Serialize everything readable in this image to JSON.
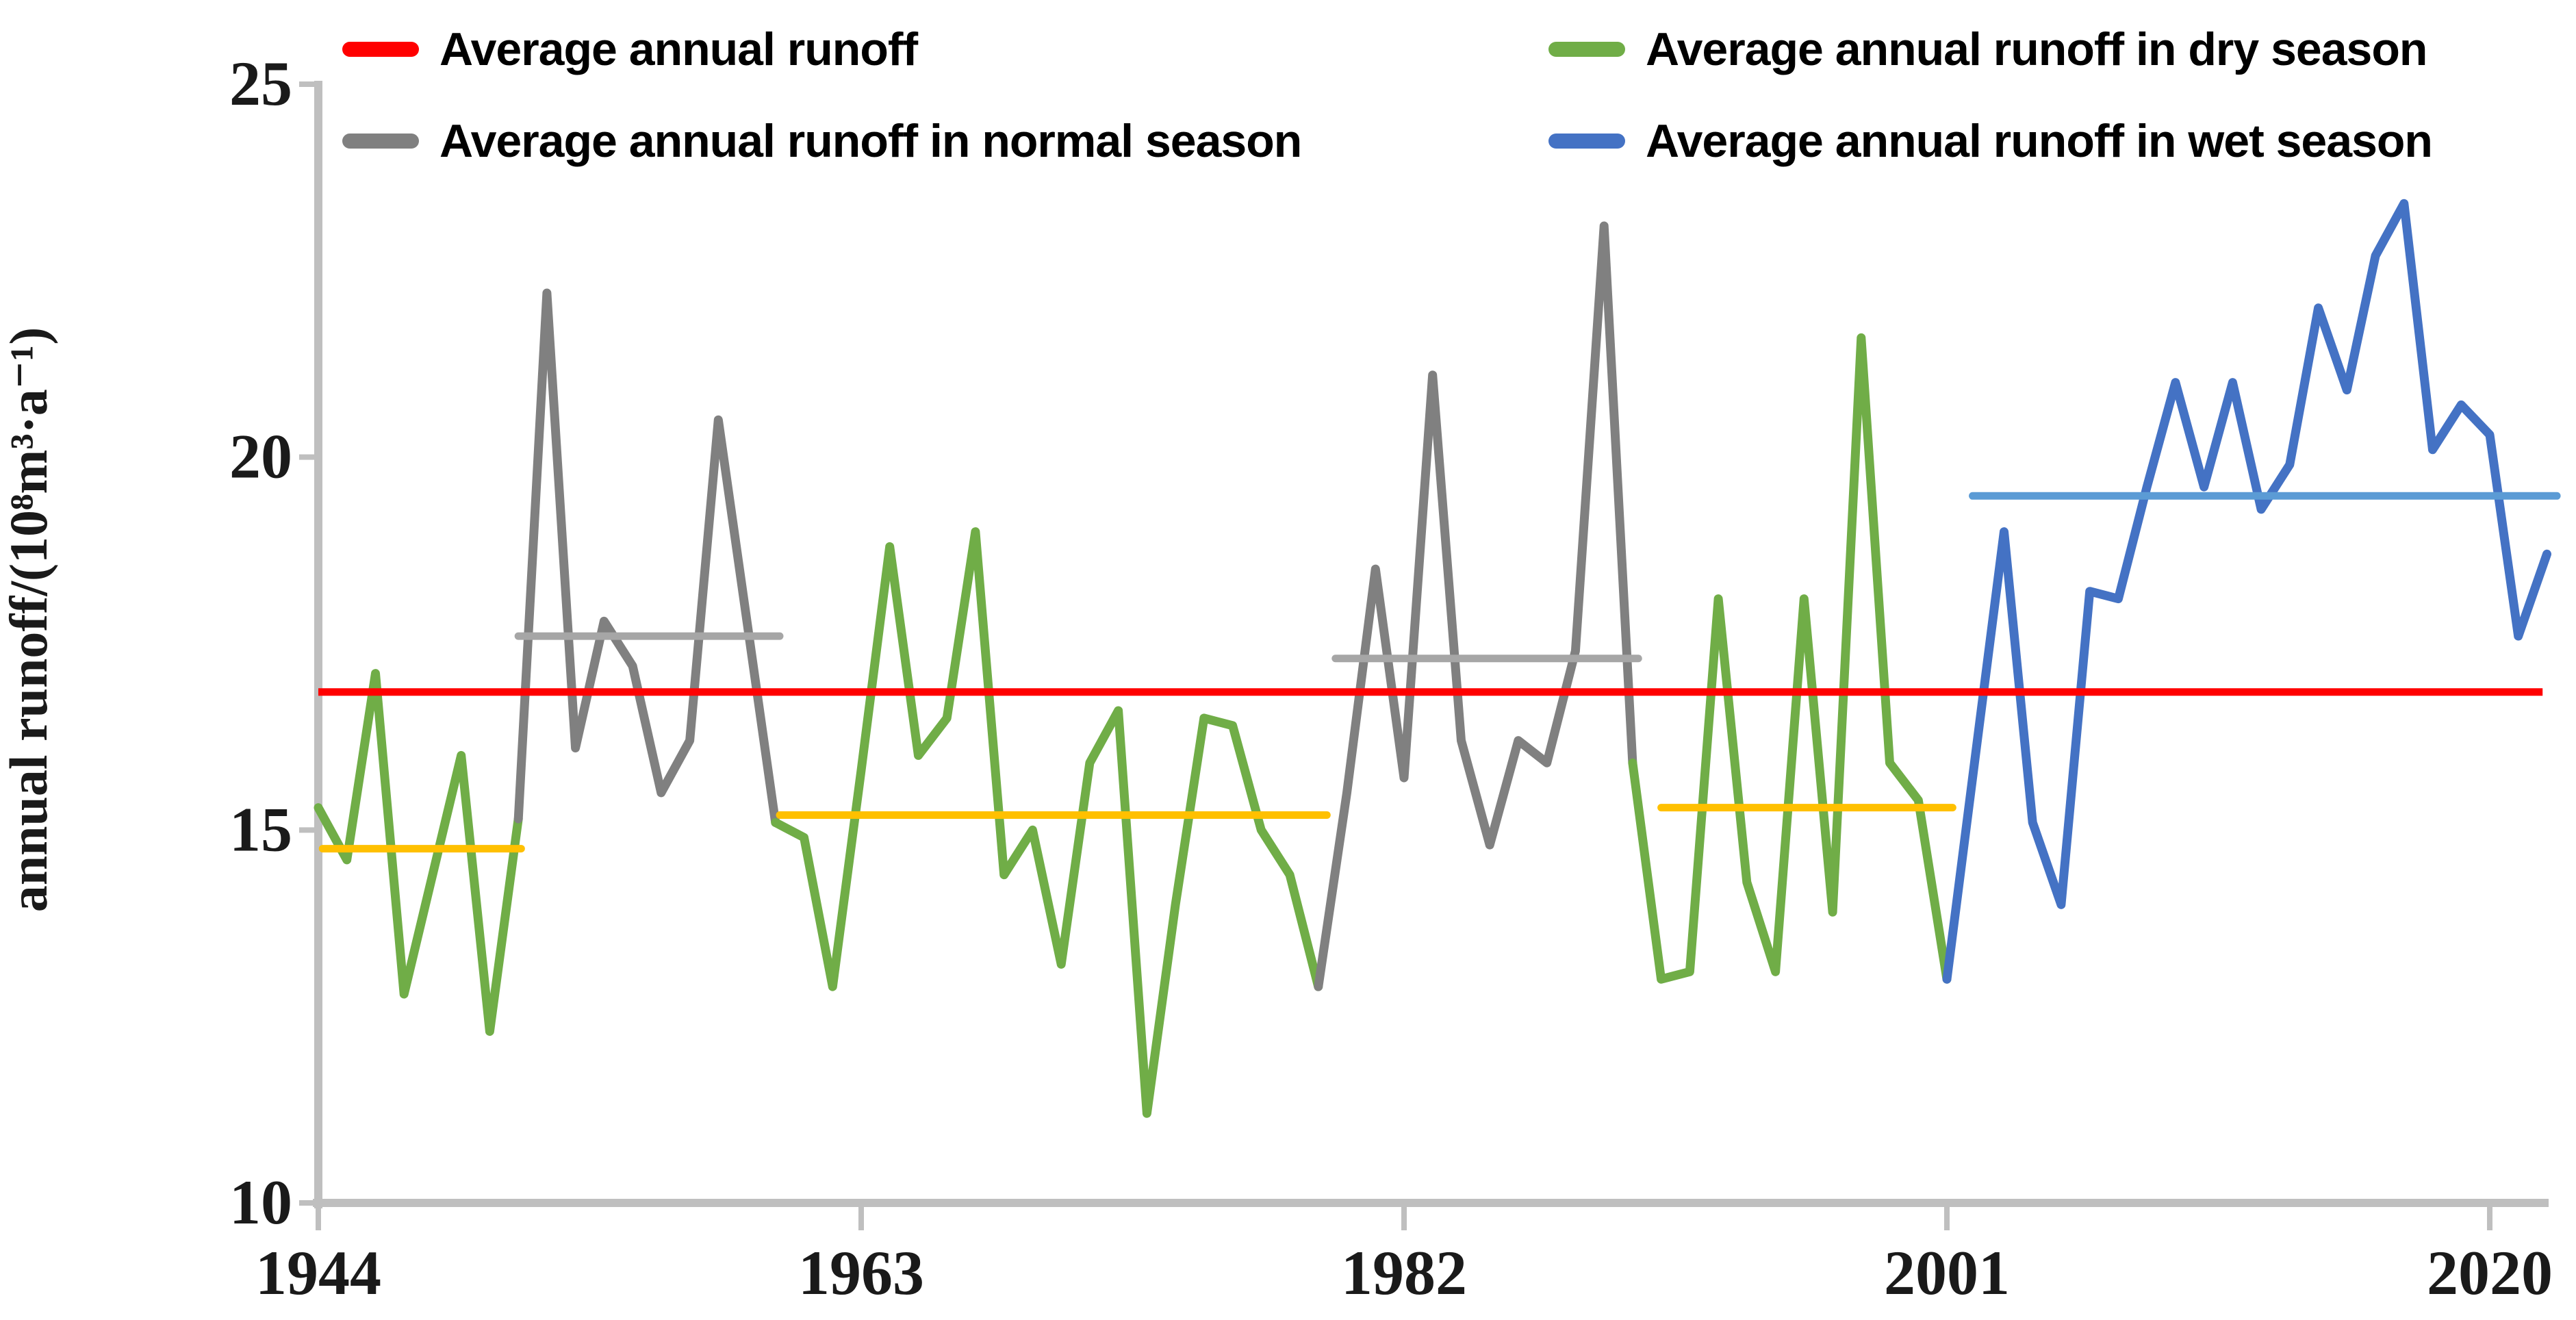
{
  "legend": [
    {
      "label": "Average annual runoff",
      "color": "#FF0000"
    },
    {
      "label": "Average annual runoff in normal season",
      "color": "#808080"
    },
    {
      "label": "Average annual runoff in dry season",
      "color": "#70AD47"
    },
    {
      "label": "Average annual runoff in wet season",
      "color": "#4472C4"
    }
  ],
  "y_axis": {
    "title": "annual runoff/(10⁸m³·a⁻¹)",
    "tick_labels": [
      "10",
      "15",
      "20",
      "25"
    ]
  },
  "x_axis": {
    "tick_labels": [
      "1944",
      "1963",
      "1982",
      "2001",
      "2020"
    ]
  },
  "colors": {
    "dry_series": "#70AD47",
    "normal_series": "#808080",
    "wet_series": "#4472C4",
    "dry_average_line": "#FFC000",
    "normal_average_line": "#A6A6A6",
    "wet_average_line": "#5B9BD5",
    "overall_average_line": "#FF0000",
    "axis": "#BFBFBF"
  },
  "chart_data": {
    "type": "line",
    "title": "",
    "xlabel": "",
    "ylabel": "annual runoff/(10⁸m³·a⁻¹)",
    "ylim": [
      10,
      25
    ],
    "y_ticks": [
      10,
      15,
      20,
      25
    ],
    "x_ticks": [
      1944,
      1963,
      1982,
      2001,
      2020
    ],
    "grid": false,
    "legend_position": "top",
    "start_year": 1944,
    "end_year": 2022,
    "series": [
      {
        "name": "annual runoff",
        "values": [
          15.3,
          14.6,
          17.1,
          12.8,
          14.4,
          16.0,
          12.3,
          15.15,
          22.2,
          16.1,
          17.8,
          17.2,
          15.5,
          16.2,
          20.5,
          17.8,
          15.1,
          14.9,
          12.9,
          15.8,
          18.8,
          16.0,
          16.5,
          19.0,
          14.4,
          15.0,
          13.2,
          15.9,
          16.6,
          11.2,
          14.0,
          16.5,
          16.4,
          15.0,
          14.4,
          12.9,
          15.5,
          18.5,
          15.7,
          21.1,
          16.2,
          14.8,
          16.2,
          15.9,
          17.4,
          23.1,
          15.9,
          13.0,
          13.1,
          18.1,
          14.3,
          13.1,
          18.1,
          13.9,
          21.6,
          15.9,
          15.4,
          13.0,
          16.0,
          19.0,
          15.1,
          14.0,
          18.2,
          18.1,
          19.6,
          21.0,
          19.6,
          21.0,
          19.3,
          19.9,
          22.0,
          20.9,
          22.7,
          23.4,
          20.1,
          20.7,
          20.3,
          17.6,
          18.7
        ]
      }
    ],
    "periods": [
      {
        "season": "dry",
        "start_year": 1944,
        "end_year": 1951,
        "line_color": "#70AD47",
        "average": 14.75,
        "average_line_color": "#FFC000",
        "average_span": [
          1944.15,
          1951.1
        ]
      },
      {
        "season": "normal",
        "start_year": 1951,
        "end_year": 1960,
        "line_color": "#808080",
        "average": 17.6,
        "average_line_color": "#A6A6A6",
        "average_span": [
          1951.0,
          1960.15
        ]
      },
      {
        "season": "dry",
        "start_year": 1960,
        "end_year": 1979,
        "line_color": "#70AD47",
        "average": 15.2,
        "average_line_color": "#FFC000",
        "average_span": [
          1960.15,
          1979.3
        ]
      },
      {
        "season": "normal",
        "start_year": 1979,
        "end_year": 1990,
        "line_color": "#808080",
        "average": 17.3,
        "average_line_color": "#A6A6A6",
        "average_span": [
          1979.6,
          1990.2
        ]
      },
      {
        "season": "dry",
        "start_year": 1990,
        "end_year": 2001,
        "line_color": "#70AD47",
        "average": 15.3,
        "average_line_color": "#FFC000",
        "average_span": [
          1991.0,
          2001.2
        ]
      },
      {
        "season": "wet",
        "start_year": 2001,
        "end_year": 2022,
        "line_color": "#4472C4",
        "average": 19.48,
        "average_line_color": "#5B9BD5",
        "average_span": [
          2001.9,
          2022.35
        ]
      }
    ],
    "overall_average": {
      "value": 16.85,
      "color": "#FF0000",
      "span": [
        1944.0,
        2021.85
      ]
    }
  }
}
